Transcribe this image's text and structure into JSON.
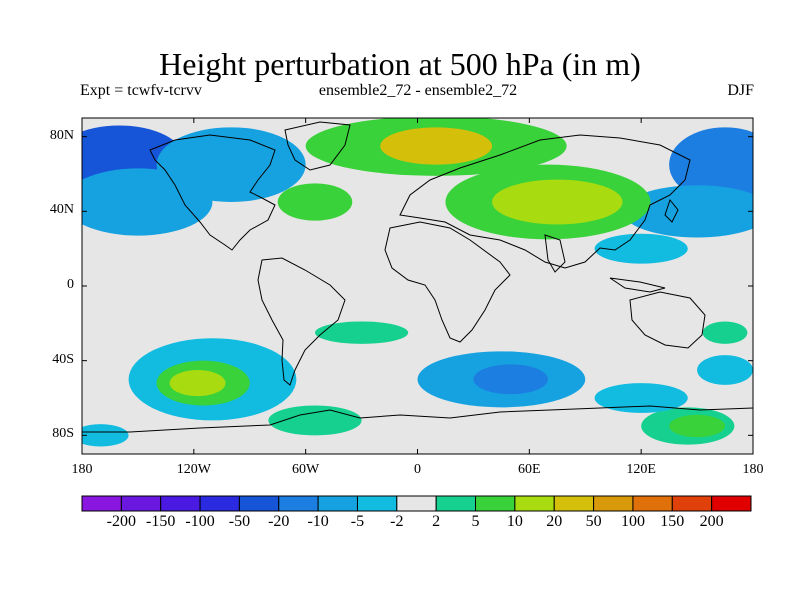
{
  "title": "Height perturbation at 500 hPa (in m)",
  "subtitle_left": "Expt = tcwfv-tcrvv",
  "subtitle_center": "ensemble2_72 - ensemble2_72",
  "subtitle_right": "DJF",
  "map": {
    "lat_ticks": [
      "80N",
      "40N",
      "0",
      "40S",
      "80S"
    ],
    "lon_ticks": [
      "180",
      "120W",
      "60W",
      "0",
      "60E",
      "120E",
      "180"
    ],
    "lon_range": [
      -180,
      180
    ],
    "lat_range": [
      -90,
      90
    ],
    "background_color": "#e6e6e6"
  },
  "colorbar": {
    "labels": [
      "-200",
      "-150",
      "-100",
      "-50",
      "-20",
      "-10",
      "-5",
      "-2",
      "2",
      "5",
      "10",
      "20",
      "50",
      "100",
      "150",
      "200"
    ],
    "colors": [
      "#8a17e0",
      "#6a18e0",
      "#4a1ae2",
      "#2a2ae0",
      "#1655d8",
      "#1c7ee0",
      "#16a2e0",
      "#12bce0",
      "#e6e6e6",
      "#16d090",
      "#3ad23a",
      "#a8dc10",
      "#d4c00a",
      "#d89a0a",
      "#e0700a",
      "#e0400a",
      "#e00000"
    ]
  },
  "fields": [
    {
      "name": "neg-arctic-pacific",
      "level": 4,
      "cx": -160,
      "cy": 68,
      "rx": 35,
      "ry": 18
    },
    {
      "name": "neg-north-pacific",
      "level": 6,
      "cx": -150,
      "cy": 45,
      "rx": 40,
      "ry": 18
    },
    {
      "name": "neg-north-america",
      "level": 6,
      "cx": -100,
      "cy": 65,
      "rx": 40,
      "ry": 20
    },
    {
      "name": "neg-asia-pacific",
      "level": 5,
      "cx": 165,
      "cy": 65,
      "rx": 30,
      "ry": 20
    },
    {
      "name": "neg-mid-pacific",
      "level": 6,
      "cx": 150,
      "cy": 40,
      "rx": 40,
      "ry": 14
    },
    {
      "name": "pos-arctic",
      "level": 10,
      "cx": 10,
      "cy": 75,
      "rx": 70,
      "ry": 16
    },
    {
      "name": "pos-arctic-core",
      "level": 12,
      "cx": 10,
      "cy": 75,
      "rx": 30,
      "ry": 10
    },
    {
      "name": "pos-eurasia",
      "level": 10,
      "cx": 70,
      "cy": 45,
      "rx": 55,
      "ry": 20
    },
    {
      "name": "pos-eurasia-core",
      "level": 11,
      "cx": 75,
      "cy": 45,
      "rx": 35,
      "ry": 12
    },
    {
      "name": "pos-atlantic",
      "level": 10,
      "cx": -55,
      "cy": 45,
      "rx": 20,
      "ry": 10
    },
    {
      "name": "neg-east-asia",
      "level": 7,
      "cx": 120,
      "cy": 20,
      "rx": 25,
      "ry": 8
    },
    {
      "name": "neg-south-atlantic",
      "level": 7,
      "cx": -120,
      "cy": -42,
      "rx": 30,
      "ry": 10
    },
    {
      "name": "neg-south-pacific",
      "level": 7,
      "cx": -110,
      "cy": -50,
      "rx": 45,
      "ry": 22
    },
    {
      "name": "pos-south-pacific",
      "level": 10,
      "cx": -115,
      "cy": -52,
      "rx": 25,
      "ry": 12
    },
    {
      "name": "pos-south-pacific-core",
      "level": 11,
      "cx": -118,
      "cy": -52,
      "rx": 15,
      "ry": 7
    },
    {
      "name": "pos-south-atlantic",
      "level": 9,
      "cx": -30,
      "cy": -25,
      "rx": 25,
      "ry": 6
    },
    {
      "name": "neg-south-indian",
      "level": 6,
      "cx": 45,
      "cy": -50,
      "rx": 45,
      "ry": 15
    },
    {
      "name": "neg-south-indian-core",
      "level": 5,
      "cx": 50,
      "cy": -50,
      "rx": 20,
      "ry": 8
    },
    {
      "name": "pos-antarctic-atlantic",
      "level": 9,
      "cx": -55,
      "cy": -72,
      "rx": 25,
      "ry": 8
    },
    {
      "name": "pos-south-pole-east",
      "level": 9,
      "cx": 145,
      "cy": -75,
      "rx": 25,
      "ry": 10
    },
    {
      "name": "pos-south-pole-east-core",
      "level": 10,
      "cx": 150,
      "cy": -75,
      "rx": 15,
      "ry": 6
    },
    {
      "name": "neg-south-east",
      "level": 7,
      "cx": 120,
      "cy": -60,
      "rx": 25,
      "ry": 8
    },
    {
      "name": "neg-south-far-east",
      "level": 7,
      "cx": 165,
      "cy": -45,
      "rx": 15,
      "ry": 8
    },
    {
      "name": "neg-antarctic-west",
      "level": 7,
      "cx": -170,
      "cy": -80,
      "rx": 15,
      "ry": 6
    },
    {
      "name": "pos-tropics",
      "level": 9,
      "cx": 165,
      "cy": -25,
      "rx": 12,
      "ry": 6
    }
  ]
}
